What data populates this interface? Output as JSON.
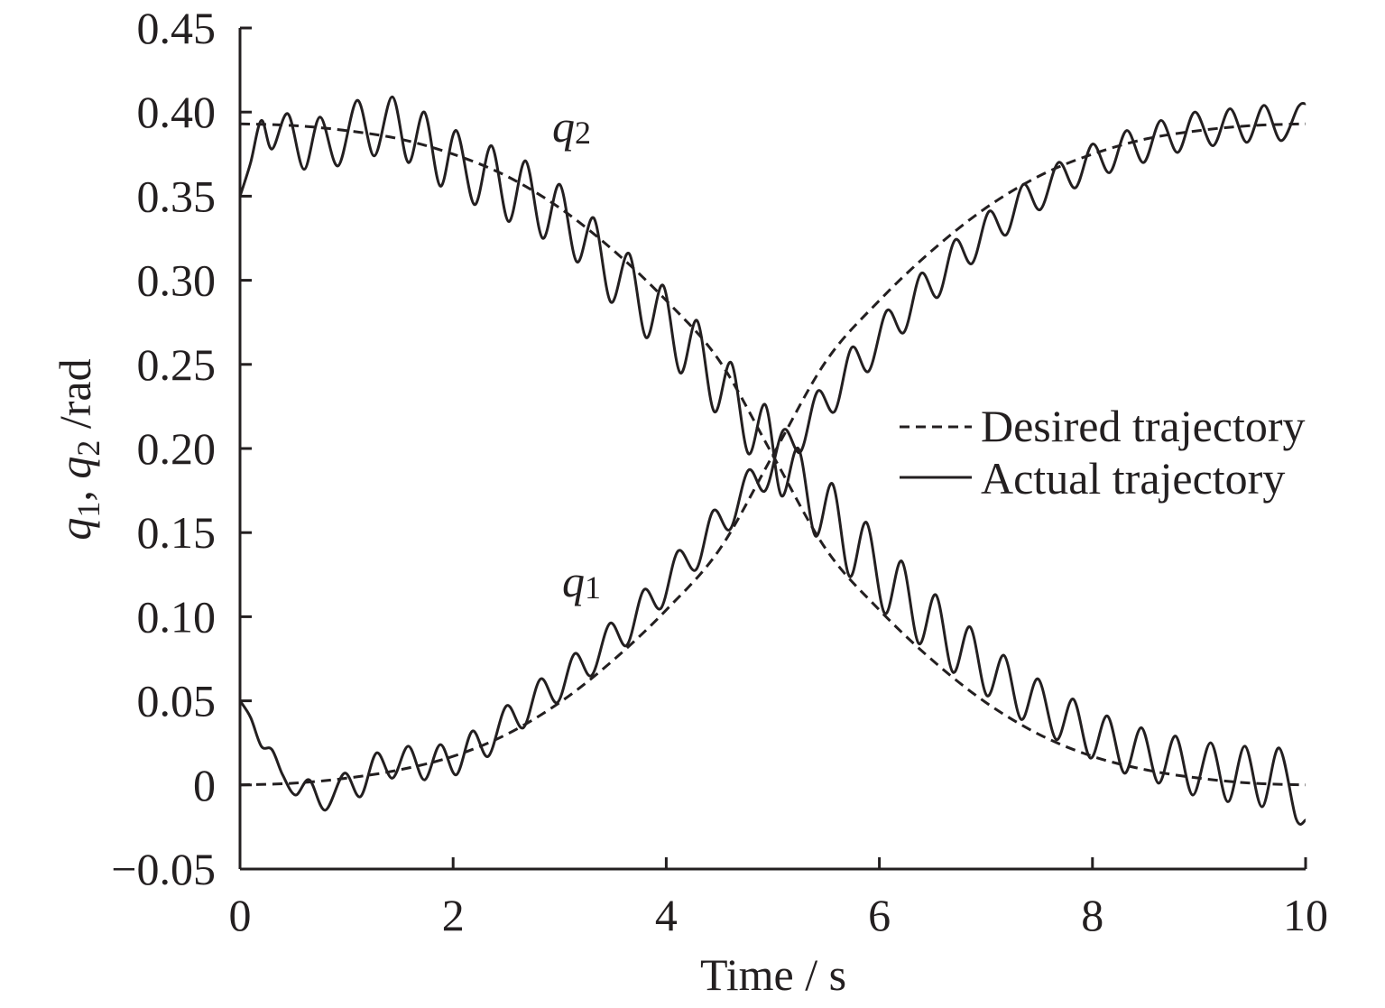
{
  "chart_data": {
    "type": "line",
    "title": "",
    "xlabel": "Time / s",
    "ylabel": {
      "q1": "q",
      "sub1": "1",
      "sep": ", ",
      "q2": "q",
      "sub2": "2",
      "unit": " /rad"
    },
    "xlim": [
      0,
      10
    ],
    "ylim": [
      -0.05,
      0.45
    ],
    "xticks": [
      0,
      2,
      4,
      6,
      8,
      10
    ],
    "xtick_labels": [
      "0",
      "2",
      "4",
      "6",
      "8",
      "10"
    ],
    "yticks": [
      -0.05,
      0,
      0.05,
      0.1,
      0.15,
      0.2,
      0.25,
      0.3,
      0.35,
      0.4,
      0.45
    ],
    "ytick_labels": [
      "−0.05",
      "0",
      "0.05",
      "0.10",
      "0.15",
      "0.20",
      "0.25",
      "0.30",
      "0.35",
      "0.40",
      "0.45"
    ],
    "grid": false,
    "legend": {
      "placement": "right",
      "entries": [
        {
          "label": "Desired trajectory",
          "style": "dashed"
        },
        {
          "label": "Actual trajectory",
          "style": "solid"
        }
      ]
    },
    "annotations": [
      {
        "text": "q",
        "sub": "2",
        "x": 3.0,
        "y": 0.39
      },
      {
        "text": "q",
        "sub": "1",
        "x": 3.1,
        "y": 0.115
      }
    ],
    "series": [
      {
        "name": "Desired trajectory",
        "curve": "q1",
        "style": "dashed",
        "x": [
          0,
          0.5,
          1,
          1.5,
          2,
          2.5,
          3,
          3.5,
          4,
          4.5,
          5,
          5.5,
          6,
          6.5,
          7,
          7.5,
          8,
          8.5,
          9,
          9.5,
          10
        ],
        "y": [
          0,
          0.001,
          0.004,
          0.009,
          0.017,
          0.03,
          0.049,
          0.074,
          0.104,
          0.14,
          0.196,
          0.252,
          0.288,
          0.318,
          0.343,
          0.362,
          0.375,
          0.384,
          0.389,
          0.392,
          0.393
        ]
      },
      {
        "name": "Desired trajectory",
        "curve": "q2",
        "style": "dashed",
        "x": [
          0,
          0.5,
          1,
          1.5,
          2,
          2.5,
          3,
          3.5,
          4,
          4.5,
          5,
          5.5,
          6,
          6.5,
          7,
          7.5,
          8,
          8.5,
          9,
          9.5,
          10
        ],
        "y": [
          0.393,
          0.392,
          0.389,
          0.384,
          0.375,
          0.362,
          0.343,
          0.318,
          0.288,
          0.252,
          0.196,
          0.14,
          0.104,
          0.074,
          0.049,
          0.03,
          0.017,
          0.009,
          0.004,
          0.001,
          0
        ]
      },
      {
        "name": "Actual trajectory",
        "curve": "q1",
        "style": "solid",
        "x": [
          0,
          0.1,
          0.2,
          0.3,
          0.4,
          0.52,
          0.65,
          0.8,
          0.98,
          1.13,
          1.28,
          1.43,
          1.58,
          1.73,
          1.88,
          2.03,
          2.18,
          2.33,
          2.5,
          2.66,
          2.82,
          2.98,
          3.14,
          3.3,
          3.47,
          3.63,
          3.79,
          3.95,
          4.11,
          4.28,
          4.44,
          4.6,
          4.77,
          4.93,
          5.1,
          5.26,
          5.42,
          5.58,
          5.74,
          5.9,
          6.07,
          6.23,
          6.39,
          6.55,
          6.71,
          6.87,
          7.03,
          7.19,
          7.35,
          7.51,
          7.68,
          7.84,
          8.0,
          8.16,
          8.32,
          8.48,
          8.64,
          8.8,
          8.96,
          9.13,
          9.29,
          9.45,
          9.61,
          9.77,
          9.93,
          10
        ],
        "y": [
          0.05,
          0.04,
          0.023,
          0.021,
          0.006,
          -0.006,
          0.003,
          -0.015,
          0.007,
          -0.007,
          0.019,
          0.004,
          0.023,
          0.003,
          0.024,
          0.006,
          0.032,
          0.017,
          0.047,
          0.034,
          0.063,
          0.049,
          0.078,
          0.065,
          0.096,
          0.083,
          0.116,
          0.105,
          0.139,
          0.128,
          0.163,
          0.152,
          0.187,
          0.175,
          0.211,
          0.198,
          0.234,
          0.222,
          0.26,
          0.246,
          0.282,
          0.269,
          0.304,
          0.29,
          0.324,
          0.31,
          0.341,
          0.327,
          0.357,
          0.342,
          0.37,
          0.355,
          0.381,
          0.364,
          0.389,
          0.37,
          0.395,
          0.376,
          0.4,
          0.38,
          0.402,
          0.382,
          0.404,
          0.383,
          0.403,
          0.405
        ]
      },
      {
        "name": "Actual trajectory",
        "curve": "q2",
        "style": "solid",
        "x": [
          0,
          0.1,
          0.2,
          0.3,
          0.45,
          0.6,
          0.75,
          0.92,
          1.1,
          1.26,
          1.43,
          1.58,
          1.73,
          1.88,
          2.03,
          2.2,
          2.36,
          2.52,
          2.68,
          2.84,
          3.0,
          3.16,
          3.32,
          3.48,
          3.65,
          3.81,
          3.97,
          4.13,
          4.29,
          4.45,
          4.61,
          4.77,
          4.93,
          5.08,
          5.24,
          5.4,
          5.56,
          5.72,
          5.88,
          6.05,
          6.21,
          6.37,
          6.53,
          6.69,
          6.85,
          7.01,
          7.17,
          7.33,
          7.49,
          7.66,
          7.82,
          7.98,
          8.14,
          8.3,
          8.46,
          8.62,
          8.78,
          8.94,
          9.11,
          9.27,
          9.43,
          9.59,
          9.75,
          9.91,
          10
        ],
        "y": [
          0.35,
          0.37,
          0.395,
          0.378,
          0.399,
          0.366,
          0.397,
          0.368,
          0.407,
          0.374,
          0.409,
          0.37,
          0.4,
          0.356,
          0.389,
          0.345,
          0.38,
          0.335,
          0.371,
          0.325,
          0.357,
          0.311,
          0.337,
          0.287,
          0.316,
          0.266,
          0.297,
          0.245,
          0.276,
          0.222,
          0.251,
          0.197,
          0.226,
          0.172,
          0.2,
          0.148,
          0.179,
          0.124,
          0.156,
          0.102,
          0.133,
          0.084,
          0.113,
          0.067,
          0.094,
          0.053,
          0.077,
          0.039,
          0.063,
          0.027,
          0.051,
          0.016,
          0.041,
          0.007,
          0.034,
          0.001,
          0.029,
          -0.006,
          0.025,
          -0.01,
          0.023,
          -0.013,
          0.022,
          -0.02,
          -0.021
        ]
      }
    ]
  }
}
